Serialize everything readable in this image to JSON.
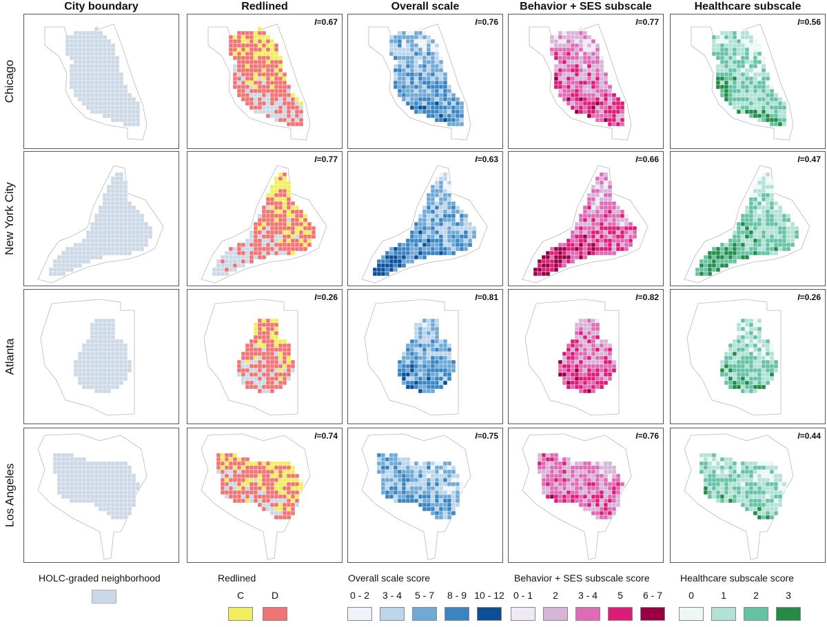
{
  "columns": [
    "City boundary",
    "Redlined",
    "Overall scale",
    "Behavior + SES subscale",
    "Healthcare subscale"
  ],
  "rows": [
    "Chicago",
    "New York City",
    "Atlanta",
    "Los Angeles"
  ],
  "moran": {
    "chicago": [
      "0.67",
      "0.76",
      "0.77",
      "0.56"
    ],
    "nyc": [
      "0.77",
      "0.63",
      "0.66",
      "0.47"
    ],
    "atlanta": [
      "0.26",
      "0.81",
      "0.82",
      "0.26"
    ],
    "la": [
      "0.74",
      "0.75",
      "0.76",
      "0.44"
    ]
  },
  "moran_prefix": "I",
  "moran_eq": "=",
  "legend": {
    "holc": {
      "title": "HOLC-graded neighborhood",
      "color": "#cbd8e6"
    },
    "redlined": {
      "title": "Redlined",
      "items": [
        {
          "label": "C",
          "color": "#f0ee5a"
        },
        {
          "label": "D",
          "color": "#f07474"
        }
      ]
    },
    "overall": {
      "title": "Overall scale score",
      "items": [
        {
          "label": "0 - 2",
          "color": "#eef3fb"
        },
        {
          "label": "3 - 4",
          "color": "#bcd5ea"
        },
        {
          "label": "5 - 7",
          "color": "#6fa9d6"
        },
        {
          "label": "8 - 9",
          "color": "#3a84c2"
        },
        {
          "label": "10 - 12",
          "color": "#0d4f97"
        }
      ]
    },
    "behavior": {
      "title": "Behavior + SES subscale score",
      "items": [
        {
          "label": "0 - 1",
          "color": "#efe9f3"
        },
        {
          "label": "2",
          "color": "#d7b5d8"
        },
        {
          "label": "3 - 4",
          "color": "#df6bb6"
        },
        {
          "label": "5",
          "color": "#dd1c77"
        },
        {
          "label": "6 - 7",
          "color": "#980043"
        }
      ]
    },
    "health": {
      "title": "Healthcare subscale score",
      "items": [
        {
          "label": "0",
          "color": "#edf8f6"
        },
        {
          "label": "1",
          "color": "#b2e2d6"
        },
        {
          "label": "2",
          "color": "#66c2a4"
        },
        {
          "label": "3",
          "color": "#238b45"
        }
      ]
    }
  }
}
